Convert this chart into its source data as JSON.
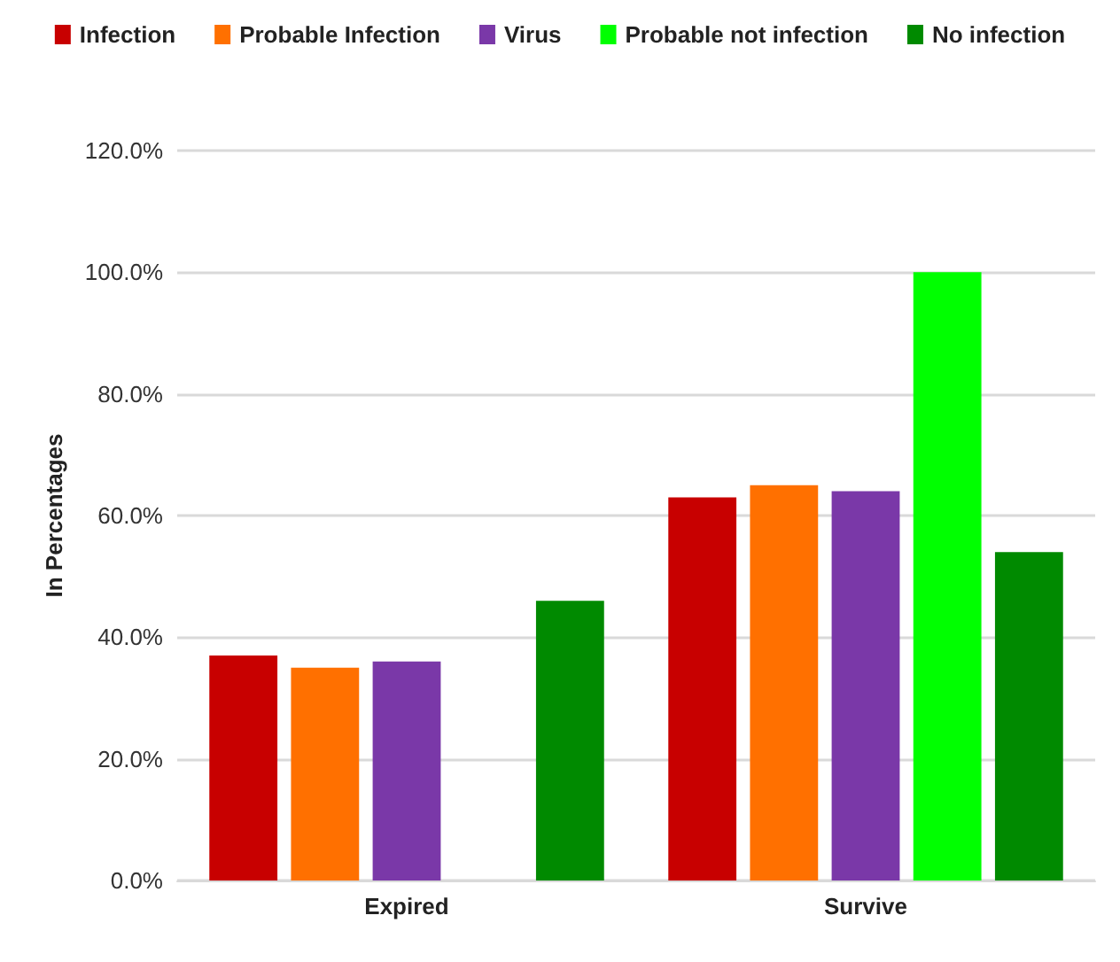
{
  "chart_data": {
    "type": "bar",
    "ylabel": "In Percentages",
    "categories": [
      "Expired",
      "Survive"
    ],
    "series": [
      {
        "name": "Infection",
        "color": "#c80000",
        "values": [
          37,
          63
        ]
      },
      {
        "name": "Probable Infection",
        "color": "#ff7000",
        "values": [
          35,
          65
        ]
      },
      {
        "name": "Virus",
        "color": "#7a38a8",
        "values": [
          36,
          64
        ]
      },
      {
        "name": "Probable not infection",
        "color": "#00ff00",
        "values": [
          0,
          100
        ]
      },
      {
        "name": "No infection",
        "color": "#008a00",
        "values": [
          46,
          54
        ]
      }
    ],
    "ylim": [
      0,
      120
    ],
    "yticks": [
      {
        "value": 0,
        "label": "0.0%"
      },
      {
        "value": 20,
        "label": "20.0%"
      },
      {
        "value": 40,
        "label": "40.0%"
      },
      {
        "value": 60,
        "label": "60.0%"
      },
      {
        "value": 80,
        "label": "80.0%"
      },
      {
        "value": 100,
        "label": "100.0%"
      },
      {
        "value": 120,
        "label": "120.0%"
      }
    ],
    "grid": "y",
    "legend": "top"
  }
}
